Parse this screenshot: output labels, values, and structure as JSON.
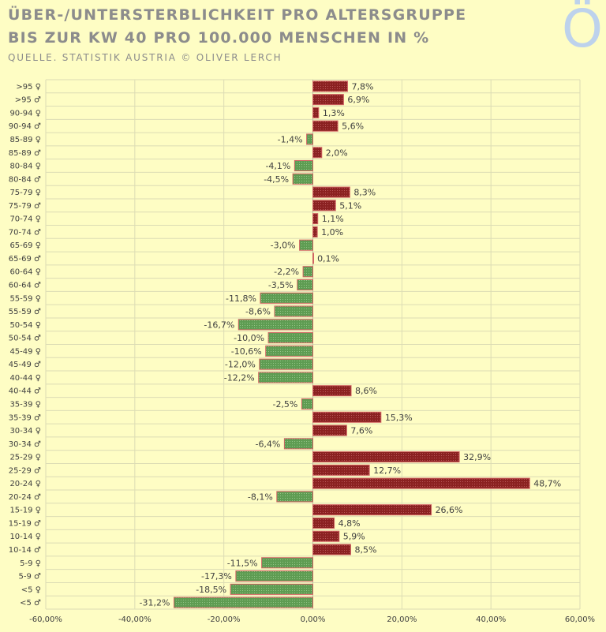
{
  "header": {
    "title_line1": "ÜBER-/UNTERSTERBLICHKEIT PRO ALTERSGRUPPE",
    "title_line2": "BIS ZUR KW 40 PRO 100.000 MENSCHEN IN %",
    "source": "QUELLE. STATISTIK AUSTRIA © OLIVER LERCH",
    "logo": "Ö"
  },
  "colors": {
    "positive": "#8b2121",
    "negative": "#5e9c52",
    "background": "#fefdc4",
    "grid": "#dcdcb4"
  },
  "chart_data": {
    "type": "bar",
    "orientation": "horizontal",
    "title": "ÜBER-/UNTERSTERBLICHKEIT PRO ALTERSGRUPPE BIS ZUR KW 40 PRO 100.000 MENSCHEN IN %",
    "xlabel": "",
    "ylabel": "",
    "xlim": [
      -60,
      60
    ],
    "x_ticks": [
      -60,
      -40,
      -20,
      0,
      20,
      40,
      60
    ],
    "x_tick_labels": [
      "-60,00%",
      "-40,00%",
      "-20,00%",
      "0,00%",
      "20,00%",
      "40,00%",
      "60,00%"
    ],
    "categories": [
      ">95 ♀",
      ">95 ♂",
      "90-94 ♀",
      "90-94 ♂",
      "85-89 ♀",
      "85-89 ♂",
      "80-84 ♀",
      "80-84 ♂",
      "75-79 ♀",
      "75-79 ♂",
      "70-74 ♀",
      "70-74 ♂",
      "65-69 ♀",
      "65-69 ♂",
      "60-64 ♀",
      "60-64 ♂",
      "55-59 ♀",
      "55-59 ♂",
      "50-54 ♀",
      "50-54 ♂",
      "45-49 ♀",
      "45-49 ♂",
      "40-44 ♀",
      "40-44 ♂",
      "35-39 ♀",
      "35-39 ♂",
      "30-34 ♀",
      "30-34 ♂",
      "25-29 ♀",
      "25-29 ♂",
      "20-24 ♀",
      "20-24 ♂",
      "15-19 ♀",
      "15-19 ♂",
      "10-14 ♀",
      "10-14 ♂",
      "5-9 ♀",
      "5-9 ♂",
      "<5 ♀",
      "<5 ♂"
    ],
    "values": [
      7.8,
      6.9,
      1.3,
      5.6,
      -1.4,
      2.0,
      -4.1,
      -4.5,
      8.3,
      5.1,
      1.1,
      1.0,
      -3.0,
      0.1,
      -2.2,
      -3.5,
      -11.8,
      -8.6,
      -16.7,
      -10.0,
      -10.6,
      -12.0,
      -12.2,
      8.6,
      -2.5,
      15.3,
      7.6,
      -6.4,
      32.9,
      12.7,
      48.7,
      -8.1,
      26.6,
      4.8,
      5.9,
      8.5,
      -11.5,
      -17.3,
      -18.5,
      -31.2
    ],
    "value_labels": [
      "7,8%",
      "6,9%",
      "1,3%",
      "5,6%",
      "-1,4%",
      "2,0%",
      "-4,1%",
      "-4,5%",
      "8,3%",
      "5,1%",
      "1,1%",
      "1,0%",
      "-3,0%",
      "0,1%",
      "-2,2%",
      "-3,5%",
      "-11,8%",
      "-8,6%",
      "-16,7%",
      "-10,0%",
      "-10,6%",
      "-12,0%",
      "-12,2%",
      "8,6%",
      "-2,5%",
      "15,3%",
      "7,6%",
      "-6,4%",
      "32,9%",
      "12,7%",
      "48,7%",
      "-8,1%",
      "26,6%",
      "4,8%",
      "5,9%",
      "8,5%",
      "-11,5%",
      "-17,3%",
      "-18,5%",
      "-31,2%"
    ],
    "grid": true
  }
}
